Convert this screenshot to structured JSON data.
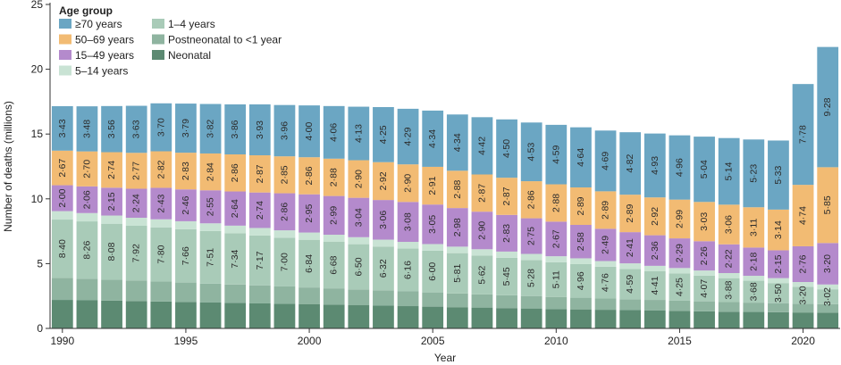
{
  "chart_data": {
    "type": "bar",
    "stacked": true,
    "xlabel": "Year",
    "ylabel": "Number of deaths (millions)",
    "ylim": [
      0,
      25
    ],
    "yticks": [
      0,
      5,
      10,
      15,
      20,
      25
    ],
    "xticks": [
      1990,
      1995,
      2000,
      2005,
      2010,
      2015,
      2020
    ],
    "grid": false,
    "legend": {
      "title": "Age group",
      "placement": "top-left",
      "items": [
        {
          "key": "ge70",
          "label": "≥70 years"
        },
        {
          "key": "a1_4",
          "label": "1–4 years"
        },
        {
          "key": "a50_69",
          "label": "50–69 years"
        },
        {
          "key": "postneo",
          "label": "Postneonatal to <1 year"
        },
        {
          "key": "a15_49",
          "label": "15–49 years"
        },
        {
          "key": "neonatal",
          "label": "Neonatal"
        },
        {
          "key": "a5_14",
          "label": "5–14 years"
        }
      ]
    },
    "categories": [
      1990,
      1991,
      1992,
      1993,
      1994,
      1995,
      1996,
      1997,
      1998,
      1999,
      2000,
      2001,
      2002,
      2003,
      2004,
      2005,
      2006,
      2007,
      2008,
      2009,
      2010,
      2011,
      2012,
      2013,
      2014,
      2015,
      2016,
      2017,
      2018,
      2019,
      2020,
      2021
    ],
    "series": [
      {
        "key": "neonatal",
        "name": "Neonatal",
        "color": "#5c8a72",
        "values": [
          2.2,
          2.17,
          2.14,
          2.11,
          2.08,
          2.04,
          2.0,
          1.97,
          1.93,
          1.9,
          1.86,
          1.83,
          1.79,
          1.76,
          1.72,
          1.68,
          1.64,
          1.61,
          1.57,
          1.54,
          1.5,
          1.47,
          1.44,
          1.41,
          1.38,
          1.35,
          1.32,
          1.29,
          1.27,
          1.25,
          1.23,
          1.21
        ]
      },
      {
        "key": "postneo",
        "name": "Postneonatal to <1 year",
        "color": "#8fb4a0",
        "values": [
          1.7,
          1.67,
          1.62,
          1.58,
          1.54,
          1.5,
          1.46,
          1.42,
          1.38,
          1.34,
          1.3,
          1.26,
          1.22,
          1.18,
          1.14,
          1.1,
          1.06,
          1.02,
          0.99,
          0.96,
          0.93,
          0.9,
          0.87,
          0.84,
          0.82,
          0.79,
          0.77,
          0.74,
          0.72,
          0.7,
          0.68,
          0.66
        ]
      },
      {
        "key": "a1_4",
        "name": "1–4 years",
        "color": "#a9cbb8",
        "values": [
          4.5,
          4.42,
          4.32,
          4.23,
          4.18,
          4.12,
          4.05,
          3.95,
          3.86,
          3.76,
          3.68,
          3.59,
          3.49,
          3.38,
          3.3,
          3.22,
          3.11,
          2.99,
          2.89,
          2.78,
          2.68,
          2.59,
          2.45,
          2.34,
          2.21,
          2.11,
          1.98,
          1.85,
          1.69,
          1.55,
          1.29,
          1.15
        ]
      },
      {
        "key": "a5_14",
        "name": "5–14 years",
        "color": "#c9e3d4",
        "values": [
          0.65,
          0.64,
          0.63,
          0.62,
          0.62,
          0.61,
          0.6,
          0.59,
          0.58,
          0.57,
          0.56,
          0.55,
          0.54,
          0.53,
          0.52,
          0.51,
          0.5,
          0.49,
          0.48,
          0.47,
          0.46,
          0.45,
          0.44,
          0.43,
          0.42,
          0.41,
          0.4,
          0.39,
          0.38,
          0.38,
          0.38,
          0.37
        ]
      },
      {
        "key": "a15_49",
        "name": "15–49 years",
        "color": "#b48acc",
        "values": [
          2.0,
          2.06,
          2.15,
          2.24,
          2.43,
          2.46,
          2.55,
          2.64,
          2.74,
          2.86,
          2.95,
          2.99,
          3.04,
          3.06,
          3.08,
          3.05,
          2.98,
          2.9,
          2.83,
          2.75,
          2.67,
          2.58,
          2.49,
          2.41,
          2.36,
          2.29,
          2.26,
          2.22,
          2.18,
          2.15,
          2.76,
          3.2
        ]
      },
      {
        "key": "a50_69",
        "name": "50–69 years",
        "color": "#f2bb73",
        "values": [
          2.67,
          2.7,
          2.74,
          2.77,
          2.82,
          2.83,
          2.84,
          2.86,
          2.87,
          2.85,
          2.86,
          2.88,
          2.9,
          2.92,
          2.9,
          2.91,
          2.88,
          2.87,
          2.87,
          2.86,
          2.88,
          2.89,
          2.89,
          2.89,
          2.92,
          2.99,
          3.03,
          3.06,
          3.11,
          3.14,
          4.74,
          5.85
        ]
      },
      {
        "key": "ge70",
        "name": "≥70 years",
        "color": "#6ba6c3",
        "values": [
          3.43,
          3.48,
          3.56,
          3.63,
          3.7,
          3.79,
          3.82,
          3.86,
          3.93,
          3.96,
          4.0,
          4.06,
          4.13,
          4.25,
          4.29,
          4.34,
          4.34,
          4.42,
          4.5,
          4.53,
          4.59,
          4.64,
          4.69,
          4.82,
          4.93,
          4.96,
          5.04,
          5.14,
          5.23,
          5.33,
          7.78,
          9.28
        ]
      }
    ],
    "annotations": {
      "under5_total": {
        "series": "a1_4",
        "values": [
          "8·40",
          "8·26",
          "8·08",
          "7·92",
          "7·80",
          "7·66",
          "7·51",
          "7·34",
          "7·17",
          "7·00",
          "6·84",
          "6·68",
          "6·50",
          "6·32",
          "6·16",
          "6·00",
          "5·81",
          "5·62",
          "5·45",
          "5·28",
          "5·11",
          "4·96",
          "4·76",
          "4·59",
          "4·41",
          "4·25",
          "4·07",
          "3·88",
          "3·68",
          "3·50",
          "3·20",
          "3·02"
        ]
      },
      "a15_49": {
        "series": "a15_49",
        "values": [
          "2·00",
          "2·06",
          "2·15",
          "2·24",
          "2·43",
          "2·46",
          "2·55",
          "2·64",
          "2·74",
          "2·86",
          "2·95",
          "2·99",
          "3·04",
          "3·06",
          "3·08",
          "3·05",
          "2·98",
          "2·90",
          "2·83",
          "2·75",
          "2·67",
          "2·58",
          "2·49",
          "2·41",
          "2·36",
          "2·29",
          "2·26",
          "2·22",
          "2·18",
          "2·15",
          "2·76",
          "3·20"
        ]
      },
      "a50_69": {
        "series": "a50_69",
        "values": [
          "2·67",
          "2·70",
          "2·74",
          "2·77",
          "2·82",
          "2·83",
          "2·84",
          "2·86",
          "2·87",
          "2·85",
          "2·86",
          "2·88",
          "2·90",
          "2·92",
          "2·90",
          "2·91",
          "2·88",
          "2·87",
          "2·87",
          "2·86",
          "2·88",
          "2·89",
          "2·89",
          "2·89",
          "2·92",
          "2·99",
          "3·03",
          "3·06",
          "3·11",
          "3·14",
          "4·74",
          "5·85"
        ]
      },
      "ge70": {
        "series": "ge70",
        "values": [
          "3·43",
          "3·48",
          "3·56",
          "3·63",
          "3·70",
          "3·79",
          "3·82",
          "3·86",
          "3·93",
          "3·96",
          "4·00",
          "4·06",
          "4·13",
          "4·25",
          "4·29",
          "4·34",
          "4·34",
          "4·42",
          "4·50",
          "4·53",
          "4·59",
          "4·64",
          "4·69",
          "4·82",
          "4·93",
          "4·96",
          "5·04",
          "5·14",
          "5·23",
          "5·33",
          "7·78",
          "9·28"
        ]
      }
    }
  }
}
